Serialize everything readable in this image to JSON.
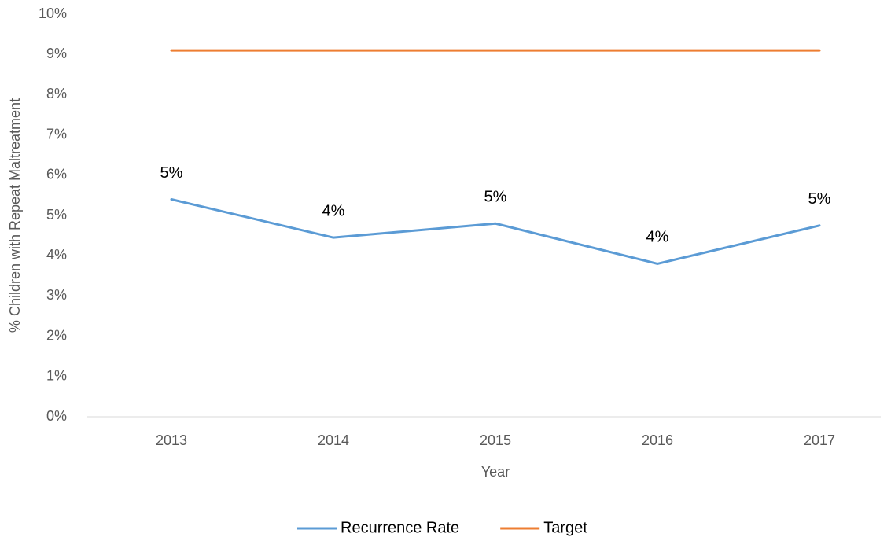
{
  "chart_data": {
    "type": "line",
    "x_label": "Year",
    "y_label": "% Children with Repeat Maltreatment",
    "categories": [
      "2013",
      "2014",
      "2015",
      "2016",
      "2017"
    ],
    "series": [
      {
        "name": "Recurrence Rate",
        "color": "#5b9bd5",
        "values": [
          5.4,
          4.45,
          4.8,
          3.8,
          4.75
        ],
        "value_labels": [
          "5%",
          "4%",
          "5%",
          "4%",
          "5%"
        ]
      },
      {
        "name": "Target",
        "color": "#ed7d31",
        "values": [
          9.1,
          9.1,
          9.1,
          9.1,
          9.1
        ]
      }
    ],
    "ylim": [
      0,
      10
    ],
    "yticks": [
      {
        "value": 0,
        "label": "0%"
      },
      {
        "value": 1,
        "label": "1%"
      },
      {
        "value": 2,
        "label": "2%"
      },
      {
        "value": 3,
        "label": "3%"
      },
      {
        "value": 4,
        "label": "4%"
      },
      {
        "value": 5,
        "label": "5%"
      },
      {
        "value": 6,
        "label": "6%"
      },
      {
        "value": 7,
        "label": "7%"
      },
      {
        "value": 8,
        "label": "8%"
      },
      {
        "value": 9,
        "label": "9%"
      },
      {
        "value": 10,
        "label": "10%"
      }
    ],
    "grid": false,
    "legend": "bottom"
  }
}
